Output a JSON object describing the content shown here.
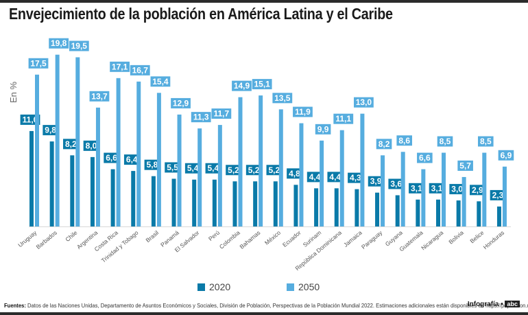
{
  "title": "Envejecimiento de la población en América Latina y el Caribe",
  "footer": {
    "label": "Fuentes:",
    "text": "Datos de las Naciones Unidas, Departamento de Asuntos Económicos y Sociales, División de Población, Perspectivas de la Población Mundial 2022. Estimaciones adicionales están disponibles en https://population.un.org/wpp/.\"",
    "credit": "Infografía •",
    "brand": "abc"
  },
  "colors": {
    "s2020": "#0a7aa8",
    "s2050": "#56addf"
  },
  "chart_data": {
    "type": "bar",
    "title": "Envejecimiento de la población en América Latina y el Caribe",
    "xlabel": "",
    "ylabel": "En %",
    "ylim": [
      0,
      21
    ],
    "grid": false,
    "legend": "bottom",
    "categories": [
      "Uruguay",
      "Barbados",
      "Chile",
      "Argentina",
      "Costa Rica",
      "Trinidad y Tobago",
      "Brasil",
      "Panamá",
      "El Salvador",
      "Perú",
      "Colombia",
      "Bahamas",
      "México",
      "Ecuador",
      "Surinam",
      "República Dominicana",
      "Jamaica",
      "Paraguay",
      "Guyana",
      "Guatemala",
      "Nicaragua",
      "Bolivia",
      "Belice",
      "Honduras"
    ],
    "series": [
      {
        "name": "2020",
        "values": [
          11.0,
          9.8,
          8.2,
          8.0,
          6.6,
          6.4,
          5.8,
          5.5,
          5.4,
          5.4,
          5.2,
          5.2,
          5.2,
          4.8,
          4.4,
          4.4,
          4.3,
          3.9,
          3.6,
          3.1,
          3.1,
          3.0,
          2.9,
          2.3
        ],
        "labels": [
          "11,0",
          "9,8",
          "8,2",
          "8,0",
          "6,6",
          "6,4",
          "5,8",
          "5,5",
          "5,4",
          "5,4",
          "5,2",
          "5,2",
          "5,2",
          "4,8",
          "4,4",
          "4,4",
          "4,3",
          "3,9",
          "3,6",
          "3,1",
          "3,1",
          "3,0",
          "2,9",
          "2,3"
        ]
      },
      {
        "name": "2050",
        "values": [
          17.5,
          19.8,
          19.5,
          13.7,
          17.1,
          16.7,
          15.4,
          12.9,
          11.3,
          11.7,
          14.9,
          15.1,
          13.5,
          11.9,
          9.9,
          11.1,
          13.0,
          8.2,
          8.6,
          6.6,
          8.5,
          5.7,
          8.5,
          6.9
        ],
        "labels": [
          "17,5",
          "19,8",
          "19,5",
          "13,7",
          "17,1",
          "16,7",
          "15,4",
          "12,9",
          "11,3",
          "11,7",
          "14,9",
          "15,1",
          "13,5",
          "11,9",
          "9,9",
          "11,1",
          "13,0",
          "8,2",
          "8,6",
          "6,6",
          "8,5",
          "5,7",
          "8,5",
          "6,9"
        ]
      }
    ]
  }
}
